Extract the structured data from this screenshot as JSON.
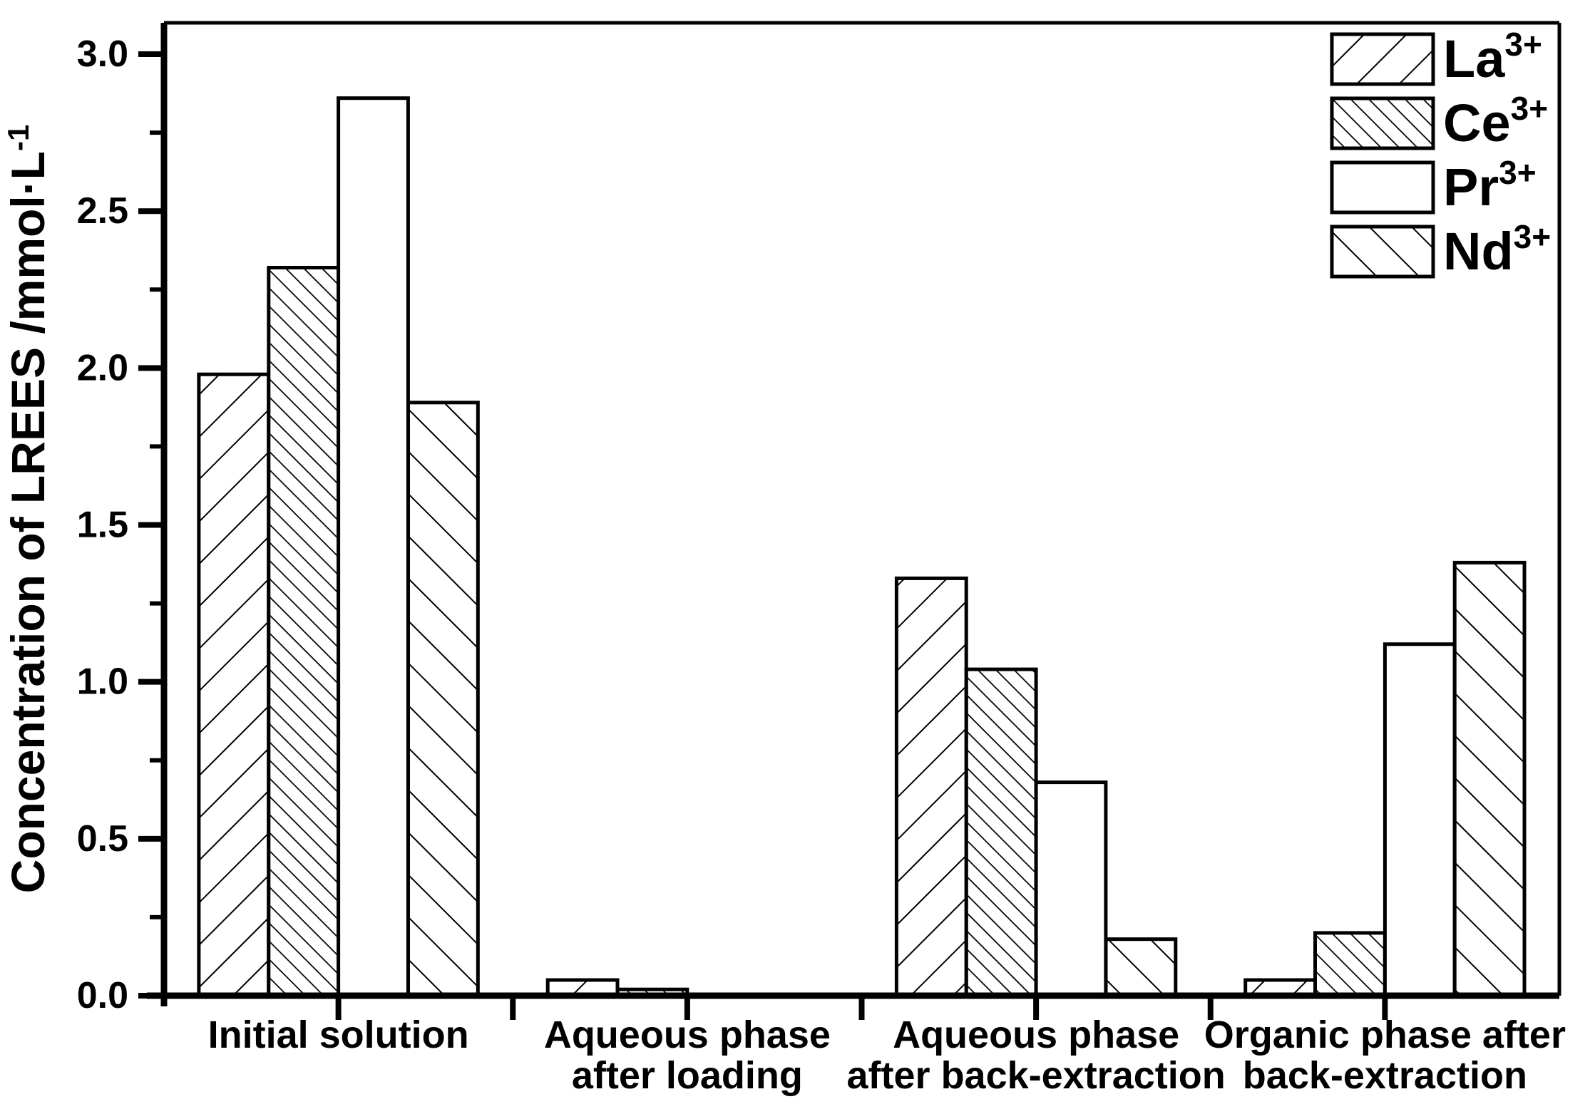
{
  "figure": {
    "background": "#ffffff",
    "ink": "#000000"
  },
  "chart_data": {
    "type": "bar",
    "title": "",
    "xlabel": "",
    "ylabel_main": "Concentration of LREES /mmol·L",
    "ylabel_sup": "-1",
    "ylim": [
      0,
      3.1
    ],
    "y_major_ticks": [
      0.0,
      0.5,
      1.0,
      1.5,
      2.0,
      2.5,
      3.0
    ],
    "y_tick_labels": [
      "0.0",
      "0.5",
      "1.0",
      "1.5",
      "2.0",
      "2.5",
      "3.0"
    ],
    "y_minor_step": 0.25,
    "grid": false,
    "bar_outline": "#000000",
    "legend_position": "top-right-inside",
    "categories": [
      {
        "lines": [
          "Initial solution"
        ]
      },
      {
        "lines": [
          "Aqueous phase",
          "after loading"
        ]
      },
      {
        "lines": [
          "Aqueous phase",
          "after back-extraction"
        ]
      },
      {
        "lines": [
          "Organic phase after",
          "back-extraction"
        ]
      }
    ],
    "series": [
      {
        "name": "La",
        "sup": "3+",
        "hatch": "forward-diagonal",
        "values": [
          1.98,
          0.05,
          1.33,
          0.05
        ]
      },
      {
        "name": "Ce",
        "sup": "3+",
        "hatch": "dense-back-diagonal",
        "values": [
          2.32,
          0.02,
          1.04,
          0.2
        ]
      },
      {
        "name": "Pr",
        "sup": "3+",
        "hatch": "none",
        "values": [
          2.86,
          0.0,
          0.68,
          1.12
        ]
      },
      {
        "name": "Nd",
        "sup": "3+",
        "hatch": "back-diagonal",
        "values": [
          1.89,
          0.0,
          0.18,
          1.38
        ]
      }
    ]
  }
}
